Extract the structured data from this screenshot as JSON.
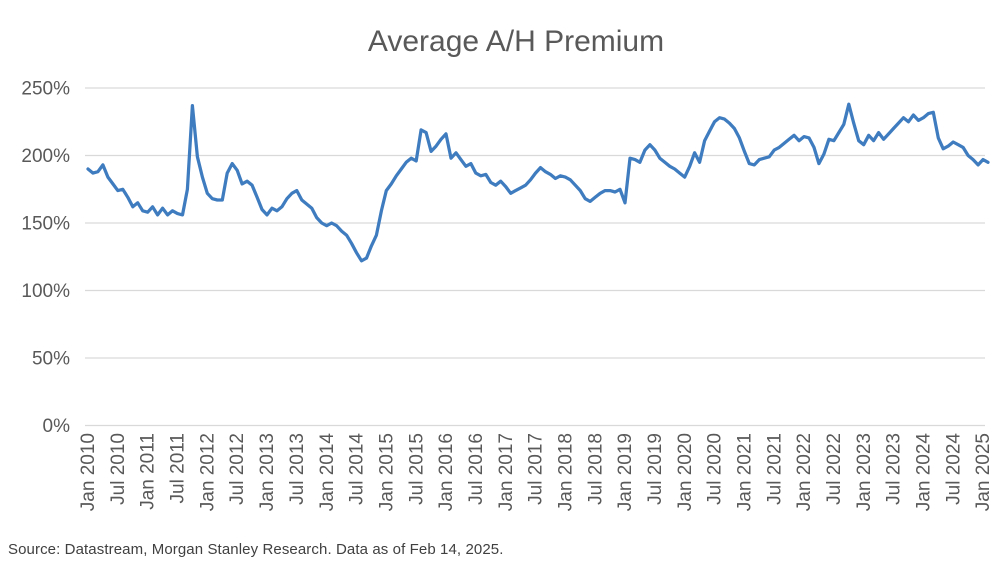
{
  "source_note": "Source: Datastream, Morgan Stanley Research. Data as of Feb 14, 2025.",
  "colors": {
    "line": "#3E7CBF",
    "gridline": "#D9D9D9",
    "title_text": "#595959",
    "axis_text": "#595959",
    "source_text": "#404040",
    "background": "#FFFFFF"
  },
  "chart_data": {
    "type": "line",
    "title": "Average A/H Premium",
    "xlabel": "",
    "ylabel": "",
    "ylim": [
      0,
      250
    ],
    "y_unit": "percent",
    "grid": "horizontal",
    "legend": "none",
    "y_ticks": [
      {
        "value": 0,
        "label": "0%"
      },
      {
        "value": 50,
        "label": "50%"
      },
      {
        "value": 100,
        "label": "100%"
      },
      {
        "value": 150,
        "label": "150%"
      },
      {
        "value": 200,
        "label": "200%"
      },
      {
        "value": 250,
        "label": "250%"
      }
    ],
    "x_tick_labels": [
      "Jan 2010",
      "Jul 2010",
      "Jan 2011",
      "Jul 2011",
      "Jan 2012",
      "Jul 2012",
      "Jan 2013",
      "Jul 2013",
      "Jan 2014",
      "Jul 2014",
      "Jan 2015",
      "Jul 2015",
      "Jan 2016",
      "Jul 2016",
      "Jan 2017",
      "Jul 2017",
      "Jan 2018",
      "Jul 2018",
      "Jan 2019",
      "Jul 2019",
      "Jan 2020",
      "Jul 2020",
      "Jan 2021",
      "Jul 2021",
      "Jan 2022",
      "Jul 2022",
      "Jan 2023",
      "Jul 2023",
      "Jan 2024",
      "Jul 2024",
      "Jan 2025"
    ],
    "x_months_per_tick": 6,
    "series": [
      {
        "name": "Average A/H Premium",
        "start_month": "Jan 2010",
        "end_month": "Feb 2025",
        "frequency": "monthly",
        "unit": "percent",
        "values": [
          190,
          187,
          188,
          193,
          184,
          179,
          174,
          175,
          169,
          162,
          165,
          159,
          158,
          162,
          156,
          161,
          156,
          159,
          157,
          156,
          175,
          237,
          199,
          184,
          172,
          168,
          167,
          167,
          187,
          194,
          189,
          179,
          181,
          178,
          169,
          160,
          156,
          161,
          159,
          162,
          168,
          172,
          174,
          167,
          164,
          161,
          154,
          150,
          148,
          150,
          148,
          144,
          141,
          135,
          128,
          122,
          124,
          133,
          141,
          159,
          174,
          179,
          185,
          190,
          195,
          198,
          196,
          219,
          217,
          203,
          207,
          212,
          216,
          198,
          202,
          197,
          192,
          194,
          187,
          185,
          186,
          180,
          178,
          181,
          177,
          172,
          174,
          176,
          178,
          182,
          187,
          191,
          188,
          186,
          183,
          185,
          184,
          182,
          178,
          174,
          168,
          166,
          169,
          172,
          174,
          174,
          173,
          175,
          165,
          198,
          197,
          195,
          204,
          208,
          204,
          198,
          195,
          192,
          190,
          187,
          184,
          192,
          202,
          195,
          211,
          218,
          225,
          228,
          227,
          224,
          220,
          213,
          203,
          194,
          193,
          197,
          198,
          199,
          204,
          206,
          209,
          212,
          215,
          211,
          214,
          213,
          206,
          194,
          201,
          212,
          211,
          217,
          223,
          238,
          224,
          211,
          208,
          215,
          211,
          217,
          212,
          216,
          220,
          224,
          228,
          225,
          230,
          226,
          228,
          231,
          232,
          213,
          205,
          207,
          210,
          208,
          206,
          200,
          197,
          193,
          197,
          195
        ]
      }
    ]
  }
}
